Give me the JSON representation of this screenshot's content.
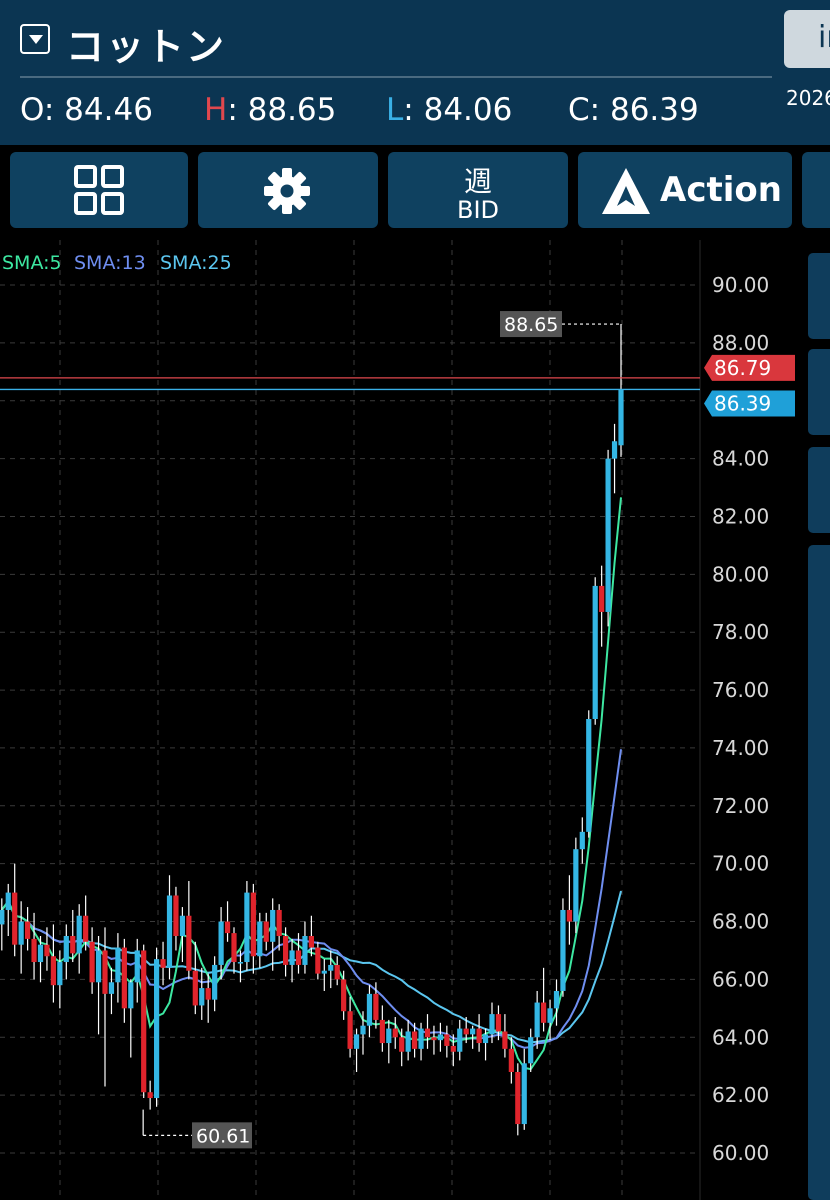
{
  "header": {
    "title": "コットン",
    "right_button_label": "in",
    "date_partial": "2026",
    "ohlc": {
      "open_label": "O",
      "open_value": "84.46",
      "high_label": "H",
      "high_value": "88.65",
      "low_label": "L",
      "low_value": "84.06",
      "close_label": "C",
      "close_value": "86.39"
    }
  },
  "toolbar": {
    "layout_icon": "grid-icon",
    "settings_icon": "gear-icon",
    "period_label": "週",
    "price_type_label": "BID",
    "action_label": "Action",
    "action_icon": "action-logo-icon"
  },
  "indicators": [
    {
      "label": "SMA:5",
      "color": "#3de8a2"
    },
    {
      "label": "SMA:13",
      "color": "#6f8ef0"
    },
    {
      "label": "SMA:25",
      "color": "#5bc6ef"
    }
  ],
  "colors": {
    "up": "#34b6e4",
    "down": "#e0242c",
    "ask_line": "#e0484e",
    "bid_line": "#3ab0e6"
  },
  "chart_data": {
    "type": "candlestick",
    "y_ticks": [
      "90.00",
      "88.00",
      "86.00",
      "84.00",
      "82.00",
      "80.00",
      "78.00",
      "76.00",
      "74.00",
      "72.00",
      "70.00",
      "68.00",
      "66.00",
      "64.00",
      "62.00",
      "60.00"
    ],
    "ylim": [
      59.2,
      91.2
    ],
    "grid": true,
    "high_marker": {
      "label": "88.65",
      "value": 88.65
    },
    "low_marker": {
      "label": "60.61",
      "value": 60.61
    },
    "ask_price": {
      "label": "86.79",
      "value": 86.79
    },
    "bid_price": {
      "label": "86.39",
      "value": 86.39
    },
    "ohlc": [
      [
        67.9,
        68.8,
        67.0,
        68.4
      ],
      [
        68.4,
        69.3,
        67.5,
        69.0
      ],
      [
        69.0,
        70.0,
        66.8,
        67.2
      ],
      [
        67.2,
        68.7,
        66.2,
        68.0
      ],
      [
        68.0,
        68.5,
        67.0,
        67.4
      ],
      [
        67.4,
        68.3,
        66.0,
        66.6
      ],
      [
        66.6,
        67.5,
        65.9,
        67.2
      ],
      [
        67.2,
        67.8,
        66.3,
        66.8
      ],
      [
        66.8,
        67.9,
        65.2,
        65.8
      ],
      [
        65.8,
        67.0,
        65.0,
        66.6
      ],
      [
        66.6,
        67.9,
        66.0,
        67.5
      ],
      [
        67.5,
        68.4,
        66.6,
        66.9
      ],
      [
        66.9,
        68.6,
        66.2,
        68.2
      ],
      [
        68.2,
        68.9,
        67.0,
        67.3
      ],
      [
        67.3,
        67.8,
        65.5,
        65.9
      ],
      [
        65.9,
        67.5,
        64.1,
        67.0
      ],
      [
        67.0,
        67.8,
        62.3,
        65.5
      ],
      [
        65.5,
        66.4,
        64.8,
        65.9
      ],
      [
        65.9,
        67.6,
        65.2,
        67.1
      ],
      [
        67.1,
        67.4,
        64.5,
        65.0
      ],
      [
        65.0,
        66.0,
        63.3,
        65.9
      ],
      [
        65.9,
        67.4,
        65.2,
        67.0
      ],
      [
        67.0,
        67.2,
        61.9,
        62.1
      ],
      [
        62.1,
        62.5,
        61.5,
        61.9
      ],
      [
        61.9,
        67.1,
        61.6,
        66.7
      ],
      [
        66.7,
        67.3,
        65.8,
        66.4
      ],
      [
        66.4,
        69.6,
        66.0,
        68.9
      ],
      [
        68.9,
        69.2,
        67.0,
        67.5
      ],
      [
        67.5,
        68.5,
        66.6,
        68.2
      ],
      [
        68.2,
        69.4,
        66.0,
        66.3
      ],
      [
        66.3,
        67.3,
        64.8,
        65.1
      ],
      [
        65.1,
        66.4,
        64.6,
        65.7
      ],
      [
        65.7,
        66.2,
        64.5,
        65.3
      ],
      [
        65.3,
        66.8,
        64.9,
        66.5
      ],
      [
        66.5,
        68.5,
        66.0,
        68.0
      ],
      [
        68.0,
        68.7,
        67.3,
        67.6
      ],
      [
        67.6,
        67.8,
        66.2,
        66.6
      ],
      [
        66.6,
        67.0,
        65.9,
        66.6
      ],
      [
        66.6,
        69.4,
        66.3,
        69.0
      ],
      [
        69.0,
        69.3,
        66.2,
        66.8
      ],
      [
        66.8,
        68.3,
        66.4,
        68.0
      ],
      [
        68.0,
        68.3,
        67.0,
        67.3
      ],
      [
        67.3,
        68.8,
        66.3,
        68.4
      ],
      [
        68.4,
        68.6,
        67.0,
        67.5
      ],
      [
        67.5,
        67.8,
        66.1,
        66.5
      ],
      [
        66.5,
        67.4,
        65.9,
        67.0
      ],
      [
        67.0,
        67.6,
        66.2,
        66.5
      ],
      [
        66.5,
        68.0,
        66.2,
        67.5
      ],
      [
        67.5,
        68.2,
        66.8,
        67.1
      ],
      [
        67.1,
        67.3,
        66.0,
        66.2
      ],
      [
        66.2,
        66.7,
        65.6,
        66.3
      ],
      [
        66.3,
        67.0,
        65.7,
        66.5
      ],
      [
        66.5,
        66.8,
        65.8,
        66.0
      ],
      [
        66.0,
        66.3,
        64.6,
        64.9
      ],
      [
        64.9,
        65.4,
        63.3,
        63.6
      ],
      [
        63.6,
        64.3,
        62.8,
        64.1
      ],
      [
        64.1,
        64.9,
        63.4,
        64.4
      ],
      [
        64.4,
        65.8,
        64.0,
        65.5
      ],
      [
        65.5,
        65.9,
        64.3,
        64.6
      ],
      [
        64.6,
        65.1,
        63.5,
        63.8
      ],
      [
        63.8,
        64.6,
        63.1,
        64.3
      ],
      [
        64.3,
        64.7,
        63.6,
        64.0
      ],
      [
        64.0,
        64.3,
        63.0,
        63.5
      ],
      [
        63.5,
        64.6,
        63.2,
        64.2
      ],
      [
        64.2,
        64.5,
        63.3,
        63.6
      ],
      [
        63.6,
        64.5,
        63.2,
        64.3
      ],
      [
        64.3,
        64.8,
        63.6,
        64.0
      ],
      [
        64.0,
        64.4,
        63.4,
        63.9
      ],
      [
        63.9,
        64.5,
        63.5,
        64.1
      ],
      [
        64.1,
        64.4,
        63.3,
        63.7
      ],
      [
        63.7,
        64.1,
        63.0,
        63.5
      ],
      [
        63.5,
        64.6,
        63.2,
        64.3
      ],
      [
        64.3,
        64.7,
        63.8,
        64.1
      ],
      [
        64.1,
        64.4,
        63.6,
        64.3
      ],
      [
        64.3,
        64.8,
        63.5,
        63.8
      ],
      [
        63.8,
        64.3,
        63.2,
        64.1
      ],
      [
        64.1,
        65.2,
        63.8,
        64.8
      ],
      [
        64.8,
        65.1,
        63.9,
        64.2
      ],
      [
        64.2,
        64.8,
        63.3,
        63.6
      ],
      [
        63.6,
        64.0,
        62.4,
        62.8
      ],
      [
        62.8,
        63.1,
        60.61,
        61.0
      ],
      [
        61.0,
        63.6,
        60.8,
        63.1
      ],
      [
        63.1,
        64.3,
        62.8,
        64.0
      ],
      [
        64.0,
        65.6,
        63.6,
        65.2
      ],
      [
        65.2,
        66.4,
        64.2,
        64.5
      ],
      [
        64.5,
        65.3,
        63.9,
        65.0
      ],
      [
        65.0,
        66.0,
        64.4,
        65.6
      ],
      [
        65.6,
        68.8,
        65.4,
        68.4
      ],
      [
        68.4,
        69.6,
        67.2,
        68.0
      ],
      [
        68.0,
        70.9,
        67.6,
        70.5
      ],
      [
        70.5,
        71.6,
        70.0,
        71.1
      ],
      [
        71.1,
        75.3,
        70.9,
        75.0
      ],
      [
        75.0,
        79.9,
        74.8,
        79.6
      ],
      [
        79.6,
        80.3,
        77.5,
        78.7
      ],
      [
        78.7,
        84.3,
        78.2,
        84.0
      ],
      [
        84.0,
        85.2,
        82.8,
        84.6
      ],
      [
        84.46,
        88.65,
        84.06,
        86.39
      ]
    ]
  }
}
